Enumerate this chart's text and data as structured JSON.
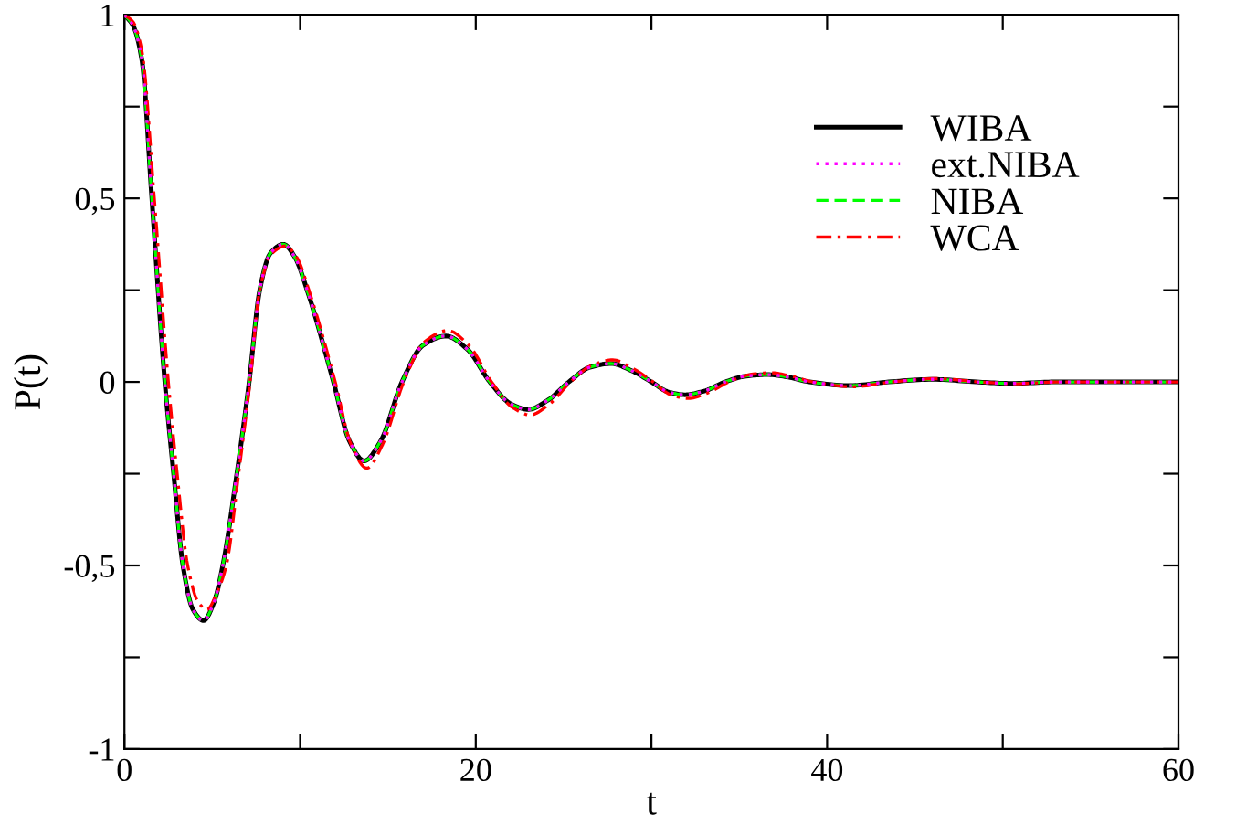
{
  "chart_data": {
    "type": "line",
    "xlabel": "t",
    "ylabel": "P(t)",
    "xlim": [
      0,
      60
    ],
    "ylim": [
      -1,
      1
    ],
    "xticks": [
      0,
      {
        "value": 10,
        "label": null
      },
      20,
      {
        "value": 30,
        "label": null
      },
      40,
      {
        "value": 50,
        "label": null
      },
      60
    ],
    "yticks": [
      {
        "value": -1,
        "label": "-1"
      },
      {
        "value": -0.75,
        "label": null
      },
      {
        "value": -0.5,
        "label": "-0,5"
      },
      {
        "value": -0.25,
        "label": null
      },
      0,
      {
        "value": 0.25,
        "label": null
      },
      {
        "value": 0.5,
        "label": "0,5"
      },
      {
        "value": 0.75,
        "label": null
      },
      1
    ],
    "grid": false,
    "legend": "top right",
    "marker": "none",
    "series": [
      {
        "name": "WIBA",
        "color": "#000000",
        "line_style": "solid",
        "x": [
          0,
          0.5,
          1,
          1.56,
          2.3,
          2.8,
          3.33,
          3.9,
          4.5,
          5.1,
          5.6,
          6.4,
          7.1,
          7.7,
          8.3,
          9.05,
          9.7,
          10.4,
          11.9,
          12.8,
          13.65,
          14.6,
          15.8,
          17,
          18.3,
          19.5,
          20.8,
          22,
          23,
          24.1,
          25.3,
          26.5,
          27.7,
          28.9,
          30,
          31,
          31.9,
          33,
          34.2,
          35.4,
          36.6,
          37.8,
          39,
          41.3,
          43.5,
          46,
          48.5,
          50.5,
          53,
          60
        ],
        "values": [
          1,
          0.97,
          0.875,
          0.5,
          0,
          -0.25,
          -0.5,
          -0.62,
          -0.65,
          -0.6,
          -0.5,
          -0.25,
          0,
          0.25,
          0.35,
          0.375,
          0.34,
          0.25,
          0,
          -0.16,
          -0.215,
          -0.16,
          0,
          0.1,
          0.125,
          0.09,
          0,
          -0.06,
          -0.075,
          -0.05,
          0,
          0.04,
          0.05,
          0.03,
          0,
          -0.028,
          -0.035,
          -0.025,
          0,
          0.016,
          0.02,
          0.013,
          0,
          -0.01,
          0,
          0.007,
          0,
          -0.004,
          0,
          0
        ]
      },
      {
        "name": "ext.NIBA",
        "color": "#ff00ff",
        "line_style": "dotted",
        "x": [
          0,
          0.5,
          1,
          1.56,
          2.3,
          2.8,
          3.33,
          3.9,
          4.5,
          5.1,
          5.6,
          6.4,
          7.1,
          7.7,
          8.3,
          9.05,
          9.7,
          10.4,
          11.9,
          12.8,
          13.65,
          14.6,
          15.8,
          17,
          18.3,
          19.5,
          20.8,
          22,
          23,
          24.1,
          25.3,
          26.5,
          27.7,
          28.9,
          30,
          31,
          31.9,
          33,
          34.2,
          35.4,
          36.6,
          37.8,
          39,
          41.3,
          43.5,
          46,
          48.5,
          50.5,
          53,
          60
        ],
        "values": [
          1,
          0.97,
          0.875,
          0.5,
          0,
          -0.25,
          -0.5,
          -0.62,
          -0.65,
          -0.6,
          -0.5,
          -0.25,
          0,
          0.25,
          0.35,
          0.375,
          0.34,
          0.25,
          0,
          -0.16,
          -0.215,
          -0.16,
          0,
          0.1,
          0.125,
          0.09,
          0,
          -0.06,
          -0.075,
          -0.05,
          0,
          0.04,
          0.05,
          0.03,
          0,
          -0.028,
          -0.035,
          -0.025,
          0,
          0.016,
          0.02,
          0.013,
          0,
          -0.01,
          0,
          0.007,
          0,
          -0.004,
          0,
          0
        ]
      },
      {
        "name": "NIBA",
        "color": "#00ff00",
        "line_style": "dashed",
        "x": [
          0,
          0.5,
          1,
          1.56,
          2.3,
          2.8,
          3.33,
          3.9,
          4.5,
          5.1,
          5.6,
          6.4,
          7.1,
          7.7,
          8.3,
          9.05,
          9.7,
          10.4,
          11.9,
          12.8,
          13.65,
          14.6,
          15.8,
          17,
          18.3,
          19.5,
          20.8,
          22,
          23,
          24.1,
          25.3,
          26.5,
          27.7,
          28.9,
          30,
          31,
          31.9,
          33,
          34.2,
          35.4,
          36.6,
          37.8,
          39,
          41.3,
          43.5,
          46,
          48.5,
          50.5,
          53,
          60
        ],
        "values": [
          1,
          0.97,
          0.875,
          0.5,
          0,
          -0.25,
          -0.5,
          -0.62,
          -0.65,
          -0.6,
          -0.5,
          -0.25,
          0,
          0.25,
          0.35,
          0.375,
          0.34,
          0.25,
          0,
          -0.16,
          -0.215,
          -0.16,
          0,
          0.1,
          0.125,
          0.09,
          0,
          -0.06,
          -0.075,
          -0.05,
          0,
          0.04,
          0.05,
          0.03,
          0,
          -0.028,
          -0.035,
          -0.025,
          0,
          0.016,
          0.02,
          0.013,
          0,
          -0.01,
          0,
          0.007,
          0,
          -0.004,
          0,
          0
        ]
      },
      {
        "name": "WCA",
        "color": "#ff0000",
        "line_style": "dashdot",
        "x": [
          0,
          0.5,
          1,
          1.7,
          2.5,
          3.0,
          3.6,
          4.2,
          4.7,
          5.3,
          5.8,
          6.5,
          7.15,
          7.7,
          8.4,
          9.15,
          9.8,
          10.5,
          12,
          12.9,
          13.8,
          14.7,
          15.9,
          17.1,
          18.4,
          19.6,
          20.9,
          22.1,
          23.1,
          24.2,
          25.4,
          26.6,
          27.8,
          29,
          30.1,
          31.1,
          32.1,
          33.2,
          34.4,
          35.6,
          36.8,
          38,
          39.2,
          41.5,
          43.7,
          46.2,
          48.7,
          50.7,
          53.2,
          60
        ],
        "values": [
          1,
          0.98,
          0.9,
          0.5,
          0,
          -0.25,
          -0.5,
          -0.6,
          -0.62,
          -0.57,
          -0.5,
          -0.25,
          0,
          0.25,
          0.35,
          0.37,
          0.34,
          0.25,
          0,
          -0.17,
          -0.235,
          -0.17,
          0,
          0.11,
          0.14,
          0.1,
          0,
          -0.07,
          -0.09,
          -0.06,
          0,
          0.045,
          0.06,
          0.035,
          0,
          -0.035,
          -0.045,
          -0.03,
          0,
          0.02,
          0.025,
          0.015,
          0,
          -0.013,
          0,
          0.009,
          0,
          -0.005,
          0,
          0
        ]
      }
    ]
  }
}
